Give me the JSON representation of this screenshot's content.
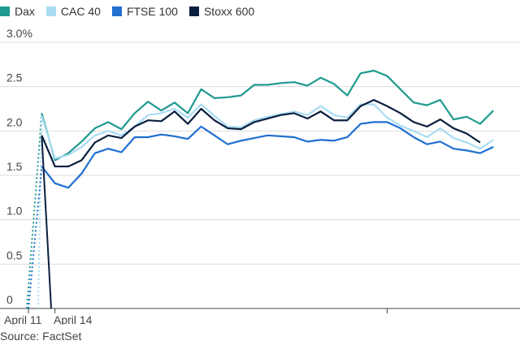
{
  "legend": [
    {
      "name": "Dax",
      "color": "#1f9a8f"
    },
    {
      "name": "CAC 40",
      "color": "#a9dcf3"
    },
    {
      "name": "FTSE 100",
      "color": "#1f6fd1"
    },
    {
      "name": "Stoxx 600",
      "color": "#0b1f3f"
    }
  ],
  "source": "Source: FactSet",
  "chart_data": {
    "type": "line",
    "title": "",
    "xlabel": "",
    "ylabel": "",
    "ylim": [
      0,
      3.0
    ],
    "yticks": [
      0,
      0.5,
      1.0,
      1.5,
      2.0,
      2.5,
      3.0
    ],
    "ytick_labels": [
      "0",
      "0.5",
      "1.0",
      "1.5",
      "2.0",
      "2.5",
      "3.0%"
    ],
    "xtick_labels": [
      "April 11",
      "April 14"
    ],
    "grid": true,
    "legend_position": "top-left",
    "dotted_segment_note_x": [
      0,
      1
    ],
    "x": [
      0,
      0.5,
      1,
      1.5,
      2,
      2.5,
      3,
      3.5,
      4,
      4.5,
      5,
      5.5,
      6,
      6.5,
      7,
      7.5,
      8,
      8.5,
      9,
      9.5,
      10,
      10.5,
      11,
      11.5,
      12,
      12.5,
      13,
      13.5,
      14,
      14.5,
      15,
      15.5,
      16,
      16.5,
      17,
      17.5,
      18,
      18.5
    ],
    "series": [
      {
        "name": "Dax",
        "color": "#1f9a8f",
        "values": [
          0,
          2.2,
          1.67,
          1.75,
          1.88,
          2.03,
          2.1,
          2.02,
          2.2,
          2.33,
          2.23,
          2.32,
          2.2,
          2.47,
          2.37,
          2.38,
          2.4,
          2.52,
          2.52,
          2.54,
          2.55,
          2.51,
          2.6,
          2.53,
          2.4,
          2.65,
          2.68,
          2.62,
          2.47,
          2.32,
          2.29,
          2.35,
          2.13,
          2.16,
          2.08,
          2.23,
          null,
          null
        ]
      },
      {
        "name": "CAC 40",
        "color": "#a9dcf3",
        "values": [
          0,
          2.17,
          1.69,
          1.73,
          1.82,
          1.95,
          2.0,
          1.95,
          2.05,
          2.18,
          2.2,
          2.25,
          2.15,
          2.3,
          2.17,
          2.05,
          2.04,
          2.12,
          2.16,
          2.19,
          2.22,
          2.18,
          2.28,
          2.18,
          2.15,
          2.3,
          2.3,
          2.15,
          2.06,
          2.0,
          1.93,
          2.03,
          1.92,
          1.87,
          1.8,
          1.9,
          null,
          null
        ]
      },
      {
        "name": "FTSE 100",
        "color": "#1f6fd1",
        "values": [
          0,
          1.6,
          1.41,
          1.36,
          1.52,
          1.75,
          1.8,
          1.76,
          1.93,
          1.93,
          1.96,
          1.94,
          1.91,
          2.05,
          1.95,
          1.85,
          1.89,
          1.92,
          1.95,
          1.94,
          1.93,
          1.88,
          1.9,
          1.89,
          1.93,
          2.08,
          2.1,
          2.1,
          2.03,
          1.93,
          1.85,
          1.88,
          1.8,
          1.78,
          1.75,
          1.82,
          null,
          null
        ]
      },
      {
        "name": "Stoxx 600",
        "color": "#0b1f3f",
        "values": [
          0,
          1.95,
          1.6,
          1.6,
          1.67,
          1.87,
          1.95,
          1.92,
          2.05,
          2.12,
          2.11,
          2.22,
          2.08,
          2.25,
          2.12,
          2.03,
          2.02,
          2.1,
          2.14,
          2.18,
          2.2,
          2.14,
          2.22,
          2.12,
          2.12,
          2.28,
          2.35,
          2.28,
          2.2,
          2.1,
          2.05,
          2.13,
          2.03,
          1.97,
          1.87,
          null,
          null,
          null
        ]
      }
    ]
  }
}
